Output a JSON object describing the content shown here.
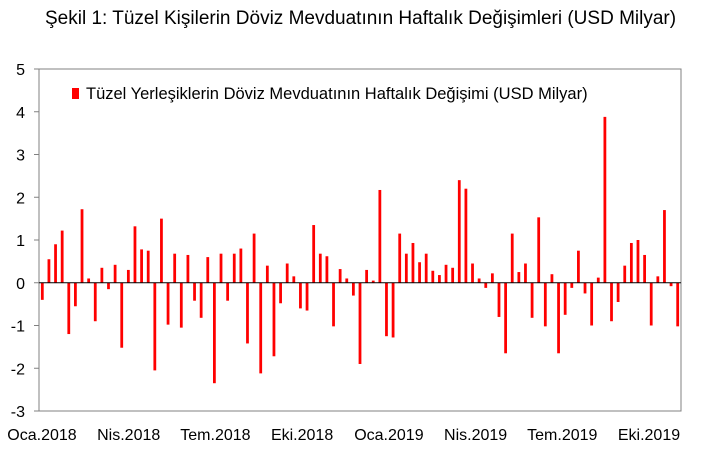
{
  "title": "Şekil 1: Tüzel Kişilerin Döviz Mevduatının Haftalık Değişimleri (USD Milyar)",
  "chart_data": {
    "type": "bar",
    "title": "Şekil 1: Tüzel Kişilerin Döviz Mevduatının Haftalık Değişimleri (USD Milyar)",
    "xlabel": "",
    "ylabel": "",
    "ylim": [
      -3,
      5
    ],
    "yticks": [
      -3,
      -2,
      -1,
      0,
      1,
      2,
      3,
      4,
      5
    ],
    "x_tick_labels": [
      "Oca.2018",
      "Nis.2018",
      "Tem.2018",
      "Eki.2018",
      "Oca.2019",
      "Nis.2019",
      "Tem.2019",
      "Eki.2019"
    ],
    "grid": false,
    "legend_position": "top",
    "color": "#ff0000",
    "series": [
      {
        "name": "Tüzel Yerleşiklerin Döviz Mevduatının Haftalık Değişimi (USD Milyar)",
        "values": [
          -0.4,
          0.55,
          0.9,
          1.22,
          -1.2,
          -0.55,
          1.72,
          0.1,
          -0.9,
          0.35,
          -0.15,
          0.42,
          -1.52,
          0.3,
          1.32,
          0.78,
          0.75,
          -2.05,
          1.5,
          -0.98,
          0.68,
          -1.05,
          0.65,
          -0.42,
          -0.82,
          0.6,
          -2.35,
          0.68,
          -0.42,
          0.68,
          0.8,
          -1.42,
          1.15,
          -2.12,
          0.4,
          -1.72,
          -0.48,
          0.45,
          0.15,
          -0.6,
          -0.65,
          1.35,
          0.68,
          0.62,
          -1.02,
          0.32,
          0.1,
          -0.3,
          -1.9,
          0.3,
          0.05,
          2.17,
          -1.25,
          -1.28,
          1.15,
          0.68,
          0.93,
          0.48,
          0.68,
          0.28,
          0.18,
          0.42,
          0.35,
          2.4,
          2.2,
          0.45,
          0.1,
          -0.12,
          0.22,
          -0.8,
          -1.65,
          1.15,
          0.25,
          0.45,
          -0.82,
          1.53,
          -1.02,
          0.2,
          -1.65,
          -0.75,
          -0.12,
          0.75,
          -0.25,
          -1.0,
          0.12,
          3.88,
          -0.9,
          -0.45,
          0.4,
          0.93,
          1.0,
          0.65,
          -1.0,
          0.15,
          1.7,
          -0.08,
          -1.02
        ]
      }
    ]
  }
}
